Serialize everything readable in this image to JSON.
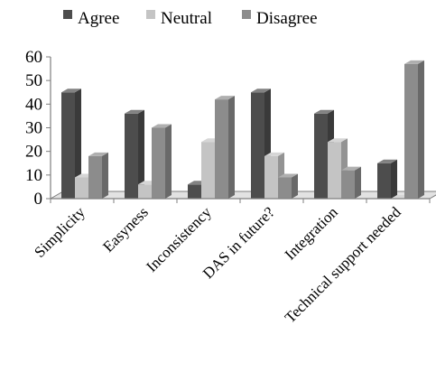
{
  "chart_data": {
    "type": "bar",
    "title": "",
    "xlabel": "",
    "ylabel": "",
    "categories": [
      "Simplicity",
      "Easyness",
      "Inconsistency",
      "DAS in future?",
      "Integration",
      "Technical support needed"
    ],
    "series": [
      {
        "name": "Agree",
        "values": [
          45,
          36,
          6,
          45,
          36,
          15
        ]
      },
      {
        "name": "Neutral",
        "values": [
          9,
          6,
          24,
          18,
          24,
          0
        ]
      },
      {
        "name": "Disagree",
        "values": [
          18,
          30,
          42,
          9,
          12,
          57
        ]
      }
    ],
    "ylim": [
      0,
      60
    ],
    "yticks": [
      0,
      10,
      20,
      30,
      40,
      50,
      60
    ],
    "grid": false,
    "legend_position": "top",
    "colors": {
      "Agree": "#4d4d4d",
      "Neutral": "#c4c4c4",
      "Disagree": "#8c8c8c",
      "floor": "#e2e2e2",
      "axis": "#7f7f7f"
    }
  }
}
